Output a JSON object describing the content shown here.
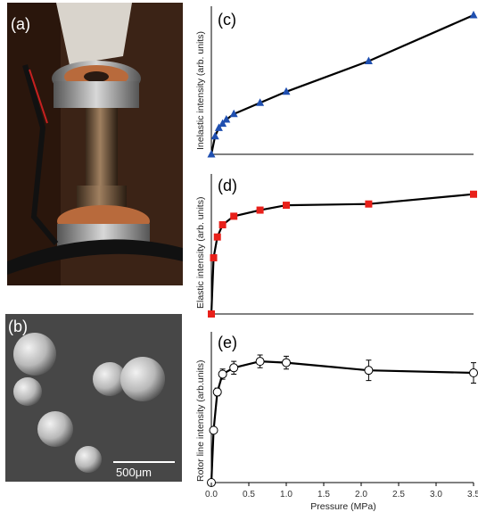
{
  "panels": {
    "a": "(a)",
    "b": "(b)",
    "c": "(c)",
    "d": "(d)",
    "e": "(e)"
  },
  "sem_scale_bar": "500μm",
  "colors": {
    "inelastic": "#1f4fb0",
    "elastic": "#e8201a",
    "rotor": "#ffffff",
    "line": "#000000"
  },
  "chart_data": [
    {
      "type": "line",
      "marker": "triangle",
      "ylabel": "Inelastic intensity (arb. units)",
      "xlim": [
        0,
        3.5
      ],
      "x": [
        0,
        0.05,
        0.1,
        0.15,
        0.2,
        0.3,
        0.65,
        1.0,
        2.1,
        3.5
      ],
      "values": [
        0.0,
        0.13,
        0.19,
        0.22,
        0.25,
        0.29,
        0.37,
        0.45,
        0.67,
        1.0
      ],
      "ylim": [
        0,
        1
      ]
    },
    {
      "type": "line",
      "marker": "square",
      "ylabel": "Elastic intensity (arb. units)",
      "xlim": [
        0,
        3.5
      ],
      "x": [
        0,
        0.03,
        0.08,
        0.15,
        0.3,
        0.65,
        1.0,
        2.1,
        3.5
      ],
      "values": [
        0.0,
        0.46,
        0.63,
        0.73,
        0.8,
        0.85,
        0.89,
        0.9,
        0.98
      ],
      "ylim": [
        0,
        1
      ]
    },
    {
      "type": "line",
      "marker": "circle-open",
      "ylabel": "Rotor line intensity (arb.units)",
      "xlabel": "Pressure (MPa)",
      "xlim": [
        0,
        3.5
      ],
      "x_ticks": [
        "0.0",
        "0.5",
        "1.0",
        "1.5",
        "2.0",
        "2.5",
        "3.0",
        "3.5"
      ],
      "x": [
        0,
        0.03,
        0.08,
        0.15,
        0.3,
        0.65,
        1.0,
        2.1,
        3.5
      ],
      "values": [
        0.0,
        0.41,
        0.71,
        0.85,
        0.9,
        0.95,
        0.94,
        0.88,
        0.86
      ],
      "errors": [
        0,
        0,
        0.03,
        0.04,
        0.05,
        0.05,
        0.05,
        0.08,
        0.08
      ],
      "ylim": [
        0,
        1
      ]
    }
  ]
}
